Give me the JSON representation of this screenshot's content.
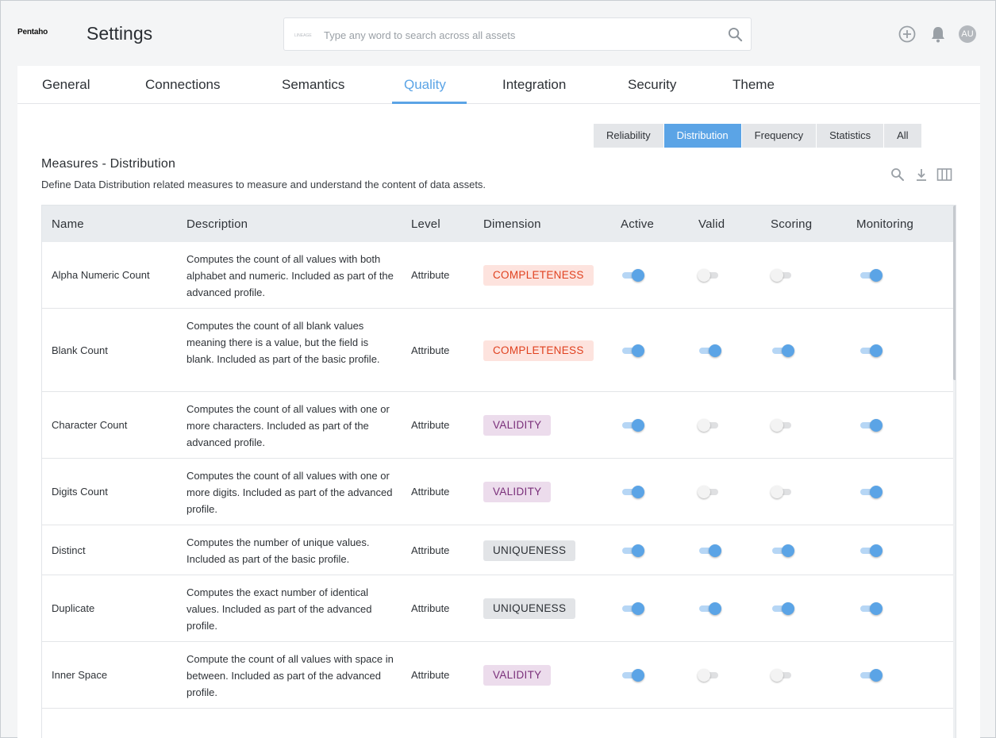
{
  "header": {
    "logo": "Pentaho",
    "title": "Settings",
    "search_scope": "LINEAGE",
    "search_placeholder": "Type any word to search across all assets",
    "avatar": "AU"
  },
  "tabs": [
    "General",
    "Connections",
    "Semantics",
    "Quality",
    "Integration",
    "Security",
    "Theme"
  ],
  "active_tab": "Quality",
  "subtabs": [
    "Reliability",
    "Distribution",
    "Frequency",
    "Statistics",
    "All"
  ],
  "active_subtab": "Distribution",
  "section": {
    "title": "Measures - Distribution",
    "description": "Define Data Distribution related measures to measure and understand the content of data assets."
  },
  "table": {
    "columns": [
      "Name",
      "Description",
      "Level",
      "Dimension",
      "Active",
      "Valid",
      "Scoring",
      "Monitoring"
    ],
    "rows": [
      {
        "name": "Alpha Numeric Count",
        "description": "Computes the count of all values with both alphabet and numeric. Included as part of the advanced profile.",
        "level": "Attribute",
        "dimension": "COMPLETENESS",
        "dim_type": "completeness",
        "active": true,
        "valid": false,
        "scoring": false,
        "monitoring": true
      },
      {
        "name": "Blank Count",
        "description": "Computes the count of all blank values meaning there is a value, but the field is blank. Included as part of the basic profile.",
        "level": "Attribute",
        "dimension": "COMPLETENESS",
        "dim_type": "completeness",
        "active": true,
        "valid": true,
        "scoring": true,
        "monitoring": true
      },
      {
        "name": "Character Count",
        "description": "Computes the count of all values with one or more characters. Included as part of the advanced profile.",
        "level": "Attribute",
        "dimension": "VALIDITY",
        "dim_type": "validity",
        "active": true,
        "valid": false,
        "scoring": false,
        "monitoring": true
      },
      {
        "name": "Digits Count",
        "description": "Computes the count of all values with one or more digits. Included as part of the advanced profile.",
        "level": "Attribute",
        "dimension": "VALIDITY",
        "dim_type": "validity",
        "active": true,
        "valid": false,
        "scoring": false,
        "monitoring": true
      },
      {
        "name": "Distinct",
        "description": "Computes the number of unique values. Included as part of the basic profile.",
        "level": "Attribute",
        "dimension": "UNIQUENESS",
        "dim_type": "uniqueness",
        "active": true,
        "valid": true,
        "scoring": true,
        "monitoring": true
      },
      {
        "name": "Duplicate",
        "description": "Computes the exact number of identical values. Included as part of the advanced profile.",
        "level": "Attribute",
        "dimension": "UNIQUENESS",
        "dim_type": "uniqueness",
        "active": true,
        "valid": true,
        "scoring": true,
        "monitoring": true
      },
      {
        "name": "Inner Space",
        "description": "Compute the count of all values with space in between. Included as part of the advanced profile.",
        "level": "Attribute",
        "dimension": "VALIDITY",
        "dim_type": "validity",
        "active": true,
        "valid": false,
        "scoring": false,
        "monitoring": true
      }
    ]
  },
  "colors": {
    "accent": "#5ba4e6",
    "completeness_bg": "#fde3de",
    "completeness_text": "#e0411f",
    "validity_bg": "#ecdcec",
    "validity_text": "#7a2f7a",
    "uniqueness_bg": "#e2e4e7"
  },
  "icons": [
    "search-icon",
    "add-circle-icon",
    "bell-icon",
    "table-search-icon",
    "download-icon",
    "columns-icon"
  ]
}
